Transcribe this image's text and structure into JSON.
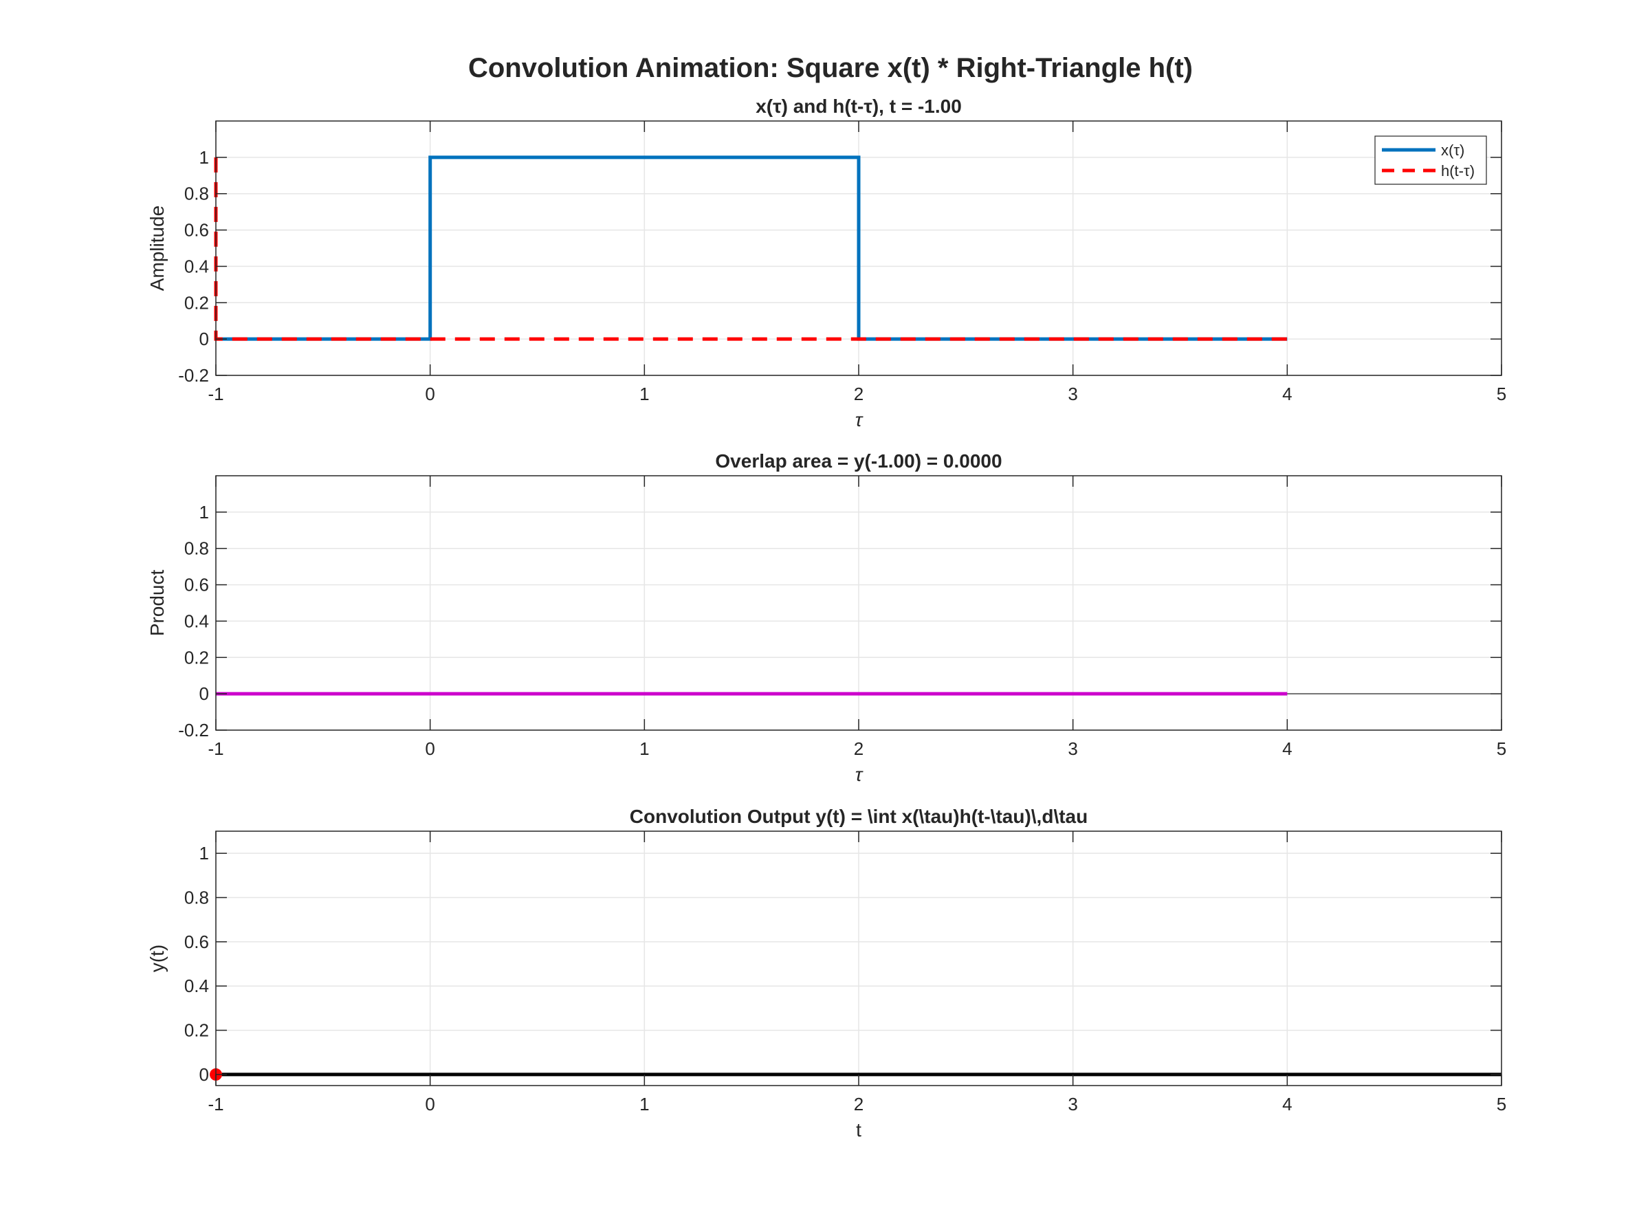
{
  "figure": {
    "title": "Convolution Animation: Square x(t) * Right-Triangle h(t)"
  },
  "colors": {
    "x_signal": "#0072BD",
    "h_signal": "#FF0000",
    "product": "#CC00CC",
    "output": "#000000",
    "marker": "#FF0000",
    "grid": "#e6e6e6",
    "axes": "#262626"
  },
  "chart_data": [
    {
      "type": "line",
      "title": "x(τ)  and  h(t-τ),     t  =  -1.00",
      "xlabel": "τ",
      "ylabel": "Amplitude",
      "xlim": [
        -1,
        5
      ],
      "ylim": [
        -0.2,
        1.2
      ],
      "xticks": [
        "-1",
        "0",
        "1",
        "2",
        "3",
        "4",
        "5"
      ],
      "yticks": [
        "-0.2",
        "0",
        "0.2",
        "0.4",
        "0.6",
        "0.8",
        "1"
      ],
      "grid": true,
      "legend": {
        "position": "top-right",
        "entries": [
          "x(τ)",
          "h(t-τ)"
        ]
      },
      "series": [
        {
          "name": "x(τ)",
          "style": "solid",
          "color": "#0072BD",
          "x": [
            -1,
            0,
            0,
            2,
            2,
            4
          ],
          "y": [
            0,
            0,
            1,
            1,
            0,
            0
          ]
        },
        {
          "name": "h(t-τ)",
          "style": "dashed",
          "color": "#FF0000",
          "x": [
            -1,
            -1,
            -1,
            4
          ],
          "y": [
            1,
            0,
            0,
            0
          ]
        }
      ]
    },
    {
      "type": "line",
      "title": "Overlap area = y(-1.00) = 0.0000",
      "xlabel": "τ",
      "ylabel": "Product",
      "xlim": [
        -1,
        5
      ],
      "ylim": [
        -0.2,
        1.2
      ],
      "xticks": [
        "-1",
        "0",
        "1",
        "2",
        "3",
        "4",
        "5"
      ],
      "yticks": [
        "-0.2",
        "0",
        "0.2",
        "0.4",
        "0.6",
        "0.8",
        "1"
      ],
      "grid": true,
      "zero_line": true,
      "series": [
        {
          "style": "solid",
          "color": "#CC00CC",
          "x": [
            -1,
            4
          ],
          "y": [
            0,
            0
          ]
        }
      ]
    },
    {
      "type": "line",
      "title": "Convolution Output y(t) = \\int x(\\tau)h(t-\\tau)\\,d\\tau",
      "xlabel": "t",
      "ylabel": "y(t)",
      "xlim": [
        -1,
        5
      ],
      "ylim": [
        -0.05,
        1.1
      ],
      "xticks": [
        "-1",
        "0",
        "1",
        "2",
        "3",
        "4",
        "5"
      ],
      "yticks": [
        "0",
        "0.2",
        "0.4",
        "0.6",
        "0.8",
        "1"
      ],
      "grid": true,
      "series": [
        {
          "style": "solid",
          "color": "#000000",
          "x": [
            -1,
            5
          ],
          "y": [
            0,
            0
          ]
        }
      ],
      "marker": {
        "x": -1,
        "y": 0,
        "color": "#FF0000"
      }
    }
  ]
}
